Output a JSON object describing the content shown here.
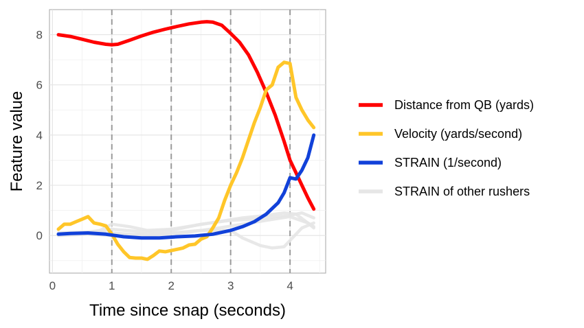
{
  "chart_data": {
    "type": "line",
    "title": "",
    "xlabel": "Time since snap (seconds)",
    "ylabel": "Feature value",
    "xlim": [
      -0.05,
      4.6
    ],
    "ylim": [
      -1.5,
      9.0
    ],
    "x_ticks": [
      0,
      1,
      2,
      3,
      4
    ],
    "y_ticks": [
      0,
      2,
      4,
      6,
      8
    ],
    "x_tick_labels": [
      "0",
      "1",
      "2",
      "3",
      "4"
    ],
    "y_tick_labels": [
      "0",
      "2",
      "4",
      "6",
      "8"
    ],
    "vlines": [
      1,
      2,
      3,
      4
    ],
    "grid": true,
    "legend_position": "right",
    "background_series": [
      {
        "name": "STRAIN of other rushers",
        "color": "#e6e6e6",
        "points": [
          [
            0.1,
            0.05
          ],
          [
            0.5,
            0.1
          ],
          [
            0.8,
            0.2
          ],
          [
            1.0,
            0.45
          ],
          [
            1.3,
            0.35
          ],
          [
            1.6,
            0.2
          ],
          [
            2.0,
            0.25
          ],
          [
            2.4,
            0.4
          ],
          [
            2.8,
            0.55
          ],
          [
            3.2,
            0.7
          ],
          [
            3.6,
            0.8
          ],
          [
            3.9,
            0.9
          ],
          [
            4.1,
            0.85
          ],
          [
            4.3,
            0.5
          ],
          [
            4.4,
            0.3
          ]
        ]
      },
      {
        "name": "STRAIN of other rushers",
        "color": "#e6e6e6",
        "points": [
          [
            0.1,
            0.0
          ],
          [
            0.6,
            0.05
          ],
          [
            1.0,
            0.0
          ],
          [
            1.5,
            0.05
          ],
          [
            2.0,
            0.1
          ],
          [
            2.5,
            0.2
          ],
          [
            3.0,
            0.2
          ],
          [
            3.2,
            -0.1
          ],
          [
            3.5,
            -0.4
          ],
          [
            3.7,
            -0.5
          ],
          [
            3.9,
            -0.45
          ],
          [
            4.0,
            -0.2
          ],
          [
            4.2,
            0.3
          ],
          [
            4.4,
            0.5
          ]
        ]
      },
      {
        "name": "STRAIN of other rushers",
        "color": "#e6e6e6",
        "points": [
          [
            0.1,
            0.1
          ],
          [
            0.7,
            0.15
          ],
          [
            1.0,
            0.25
          ],
          [
            1.5,
            0.15
          ],
          [
            2.0,
            0.2
          ],
          [
            2.5,
            0.45
          ],
          [
            3.0,
            0.6
          ],
          [
            3.4,
            0.65
          ],
          [
            3.8,
            0.75
          ],
          [
            4.0,
            0.8
          ],
          [
            4.2,
            0.9
          ],
          [
            4.4,
            0.7
          ]
        ]
      },
      {
        "name": "STRAIN of other rushers",
        "color": "#e6e6e6",
        "points": [
          [
            0.1,
            0.0
          ],
          [
            1.0,
            0.1
          ],
          [
            1.6,
            0.0
          ],
          [
            2.2,
            0.1
          ],
          [
            2.8,
            0.3
          ],
          [
            3.2,
            0.45
          ],
          [
            3.6,
            0.6
          ],
          [
            4.0,
            0.75
          ],
          [
            4.3,
            0.5
          ],
          [
            4.4,
            0.35
          ]
        ]
      }
    ],
    "series": [
      {
        "name": "Distance from QB (yards)",
        "color": "#ff0000",
        "points": [
          [
            0.1,
            8.0
          ],
          [
            0.3,
            7.93
          ],
          [
            0.5,
            7.82
          ],
          [
            0.7,
            7.7
          ],
          [
            0.9,
            7.62
          ],
          [
            1.0,
            7.6
          ],
          [
            1.1,
            7.62
          ],
          [
            1.3,
            7.78
          ],
          [
            1.5,
            7.95
          ],
          [
            1.7,
            8.1
          ],
          [
            1.9,
            8.22
          ],
          [
            2.1,
            8.33
          ],
          [
            2.3,
            8.43
          ],
          [
            2.5,
            8.5
          ],
          [
            2.6,
            8.52
          ],
          [
            2.7,
            8.5
          ],
          [
            2.85,
            8.38
          ],
          [
            3.0,
            8.05
          ],
          [
            3.15,
            7.7
          ],
          [
            3.3,
            7.2
          ],
          [
            3.45,
            6.5
          ],
          [
            3.6,
            5.7
          ],
          [
            3.75,
            4.8
          ],
          [
            3.9,
            3.75
          ],
          [
            4.0,
            3.0
          ],
          [
            4.1,
            2.5
          ],
          [
            4.2,
            2.0
          ],
          [
            4.3,
            1.5
          ],
          [
            4.4,
            1.05
          ]
        ]
      },
      {
        "name": "Velocity (yards/second)",
        "color": "#ffc629",
        "points": [
          [
            0.1,
            0.25
          ],
          [
            0.2,
            0.45
          ],
          [
            0.3,
            0.45
          ],
          [
            0.4,
            0.55
          ],
          [
            0.5,
            0.65
          ],
          [
            0.6,
            0.75
          ],
          [
            0.7,
            0.5
          ],
          [
            0.8,
            0.45
          ],
          [
            0.9,
            0.38
          ],
          [
            1.0,
            0.05
          ],
          [
            1.1,
            -0.35
          ],
          [
            1.2,
            -0.65
          ],
          [
            1.3,
            -0.88
          ],
          [
            1.4,
            -0.9
          ],
          [
            1.5,
            -0.9
          ],
          [
            1.6,
            -0.95
          ],
          [
            1.7,
            -0.8
          ],
          [
            1.8,
            -0.62
          ],
          [
            1.9,
            -0.65
          ],
          [
            2.0,
            -0.6
          ],
          [
            2.1,
            -0.55
          ],
          [
            2.2,
            -0.5
          ],
          [
            2.3,
            -0.38
          ],
          [
            2.4,
            -0.35
          ],
          [
            2.5,
            -0.15
          ],
          [
            2.6,
            -0.05
          ],
          [
            2.7,
            0.3
          ],
          [
            2.8,
            0.7
          ],
          [
            2.9,
            1.4
          ],
          [
            3.0,
            2.0
          ],
          [
            3.1,
            2.5
          ],
          [
            3.2,
            3.1
          ],
          [
            3.3,
            3.8
          ],
          [
            3.4,
            4.5
          ],
          [
            3.5,
            5.1
          ],
          [
            3.6,
            5.8
          ],
          [
            3.7,
            6.0
          ],
          [
            3.8,
            6.7
          ],
          [
            3.9,
            6.9
          ],
          [
            4.0,
            6.85
          ],
          [
            4.1,
            5.5
          ],
          [
            4.2,
            5.0
          ],
          [
            4.3,
            4.6
          ],
          [
            4.4,
            4.3
          ]
        ]
      },
      {
        "name": "STRAIN (1/second)",
        "color": "#1141d9",
        "points": [
          [
            0.1,
            0.05
          ],
          [
            0.3,
            0.08
          ],
          [
            0.6,
            0.1
          ],
          [
            0.9,
            0.05
          ],
          [
            1.2,
            -0.05
          ],
          [
            1.5,
            -0.1
          ],
          [
            1.8,
            -0.1
          ],
          [
            2.1,
            -0.05
          ],
          [
            2.4,
            -0.02
          ],
          [
            2.7,
            0.05
          ],
          [
            3.0,
            0.2
          ],
          [
            3.2,
            0.35
          ],
          [
            3.4,
            0.55
          ],
          [
            3.6,
            0.85
          ],
          [
            3.8,
            1.3
          ],
          [
            3.9,
            1.7
          ],
          [
            4.0,
            2.3
          ],
          [
            4.1,
            2.25
          ],
          [
            4.2,
            2.6
          ],
          [
            4.3,
            3.1
          ],
          [
            4.4,
            4.0
          ]
        ]
      }
    ],
    "legend": [
      {
        "label": "Distance from QB (yards)",
        "color": "#ff0000"
      },
      {
        "label": "Velocity (yards/second)",
        "color": "#ffc629"
      },
      {
        "label": "STRAIN (1/second)",
        "color": "#1141d9"
      },
      {
        "label": "STRAIN of other rushers",
        "color": "#e6e6e6"
      }
    ]
  }
}
